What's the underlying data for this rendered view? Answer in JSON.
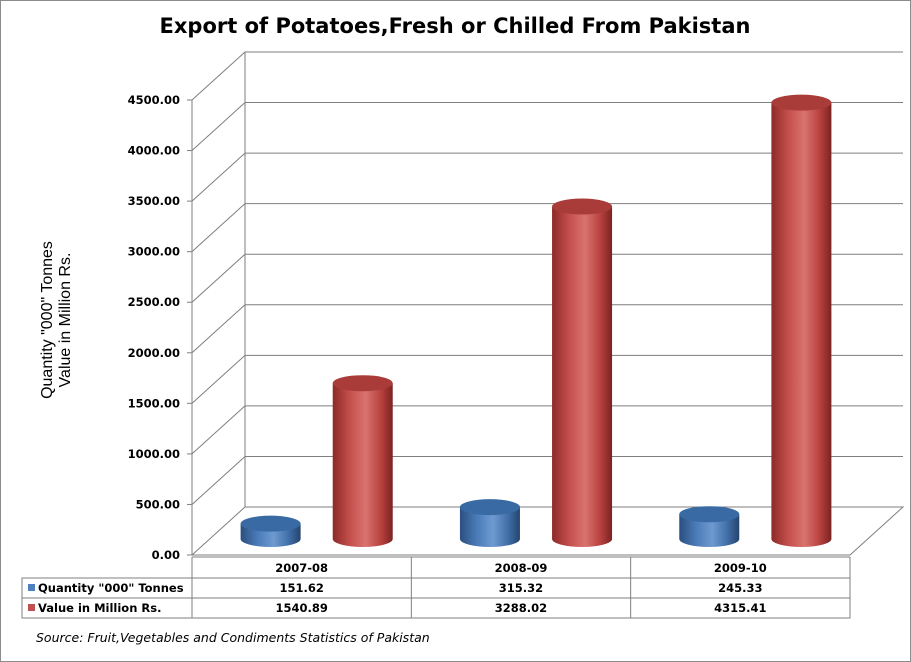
{
  "chart_data": {
    "type": "bar",
    "title": "Export of Potatoes,Fresh or Chilled From Pakistan",
    "ylabel_lines": [
      "Quantity \"000\" Tonnes",
      "Value in Million Rs."
    ],
    "xlabel": "",
    "categories": [
      "2007-08",
      "2008-09",
      "2009-10"
    ],
    "ylim": [
      0,
      4500
    ],
    "yticks": [
      "0.00",
      "500.00",
      "1000.00",
      "1500.00",
      "2000.00",
      "2500.00",
      "3000.00",
      "3500.00",
      "4000.00",
      "4500.00"
    ],
    "series": [
      {
        "name": "Quantity \"000\" Tonnes",
        "values": [
          151.62,
          315.32,
          245.33
        ],
        "labels": [
          "151.62",
          "315.32",
          "245.33"
        ],
        "color": "#4f81bd"
      },
      {
        "name": "Value in Million Rs.",
        "values": [
          1540.89,
          3288.02,
          4315.41
        ],
        "labels": [
          "1540.89",
          "3288.02",
          "4315.41"
        ],
        "color": "#c0504d"
      }
    ],
    "grid": true,
    "legend": "data-table",
    "style": "3d-cylinder"
  },
  "source_note": "Source: Fruit,Vegetables and Condiments Statistics of Pakistan"
}
